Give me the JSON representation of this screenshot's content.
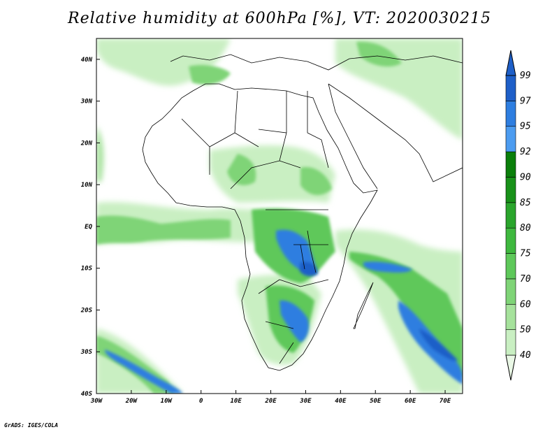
{
  "title": "Relative humidity at 600hPa [%], VT: 2020030215",
  "credit": "GrADS: IGES/COLA",
  "map": {
    "lon_range": [
      -30,
      75
    ],
    "lat_range": [
      -40,
      45
    ],
    "lon_ticks": [
      "30W",
      "20W",
      "10W",
      "0",
      "10E",
      "20E",
      "30E",
      "40E",
      "50E",
      "60E",
      "70E"
    ],
    "lon_tick_values": [
      -30,
      -20,
      -10,
      0,
      10,
      20,
      30,
      40,
      50,
      60,
      70
    ],
    "lat_ticks": [
      "40N",
      "30N",
      "20N",
      "10N",
      "EQ",
      "10S",
      "20S",
      "30S",
      "40S"
    ],
    "lat_tick_values": [
      40,
      30,
      20,
      10,
      0,
      -10,
      -20,
      -30,
      -40
    ]
  },
  "colorbar": {
    "levels": [
      "40",
      "50",
      "60",
      "70",
      "75",
      "80",
      "85",
      "90",
      "92",
      "95",
      "97",
      "99"
    ],
    "colors": [
      "#eaf8e6",
      "#c9efc2",
      "#a6e29c",
      "#7fd477",
      "#5ec85a",
      "#3fb83f",
      "#2aa52c",
      "#189119",
      "#0a7f0a",
      "#4c9cf0",
      "#2e7ee0",
      "#1e5fc8"
    ]
  }
}
